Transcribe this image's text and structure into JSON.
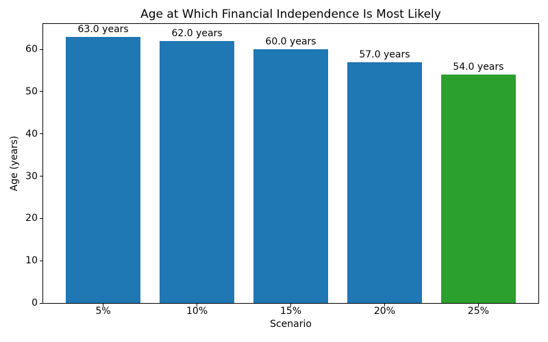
{
  "chart_data": {
    "type": "bar",
    "title": "Age at Which Financial Independence Is Most Likely",
    "xlabel": "Scenario",
    "ylabel": "Age (years)",
    "categories": [
      "5%",
      "10%",
      "15%",
      "20%",
      "25%"
    ],
    "values": [
      63.0,
      62.0,
      60.0,
      57.0,
      54.0
    ],
    "bar_labels": [
      "63.0 years",
      "62.0 years",
      "60.0 years",
      "57.0 years",
      "54.0 years"
    ],
    "bar_colors": [
      "#1f77b4",
      "#1f77b4",
      "#1f77b4",
      "#1f77b4",
      "#2ca02c"
    ],
    "ylim": [
      0,
      66
    ],
    "yticks": [
      0,
      10,
      20,
      30,
      40,
      50,
      60
    ],
    "grid": false,
    "legend_position": "none",
    "background_color": "#ffffff",
    "text_color": "#000000"
  }
}
